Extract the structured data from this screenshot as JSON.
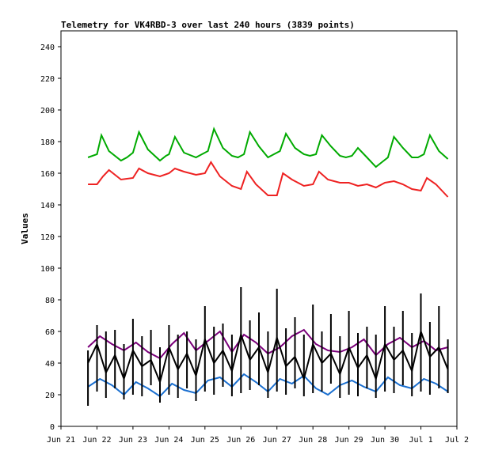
{
  "chart_data": {
    "type": "line",
    "title": "Telemetry for VK4RBD-3 over last 240 hours (3839 points)",
    "xlabel": "",
    "ylabel": "Values",
    "ylim": [
      0,
      250
    ],
    "yticks": [
      0,
      20,
      40,
      60,
      80,
      100,
      120,
      140,
      160,
      180,
      200,
      220,
      240
    ],
    "xlim": [
      "2024-06-21",
      "2024-07-02"
    ],
    "xtick_labels": [
      "Jun 21",
      "Jun 22",
      "Jun 23",
      "Jun 24",
      "Jun 25",
      "Jun 26",
      "Jun 27",
      "Jun 28",
      "Jun 29",
      "Jun 30",
      "Jul 1",
      "Jul 2"
    ],
    "grid": false,
    "series": [
      {
        "color": "#00aa00",
        "x": [
          "2024-06-21 18:00",
          "2024-06-22 00:00",
          "2024-06-22 03:00",
          "2024-06-22 08:00",
          "2024-06-22 16:00",
          "2024-06-22 20:00",
          "2024-06-23 00:00",
          "2024-06-23 04:00",
          "2024-06-23 10:00",
          "2024-06-23 18:00",
          "2024-06-23 22:00",
          "2024-06-24 00:00",
          "2024-06-24 04:00",
          "2024-06-24 10:00",
          "2024-06-24 18:00",
          "2024-06-24 22:00",
          "2024-06-25 02:00",
          "2024-06-25 06:00",
          "2024-06-25 12:00",
          "2024-06-25 18:00",
          "2024-06-25 22:00",
          "2024-06-26 02:00",
          "2024-06-26 06:00",
          "2024-06-26 12:00",
          "2024-06-26 18:00",
          "2024-06-26 22:00",
          "2024-06-27 02:00",
          "2024-06-27 06:00",
          "2024-06-27 12:00",
          "2024-06-27 18:00",
          "2024-06-27 22:00",
          "2024-06-28 02:00",
          "2024-06-28 06:00",
          "2024-06-28 12:00",
          "2024-06-28 18:00",
          "2024-06-28 22:00",
          "2024-06-29 02:00",
          "2024-06-29 06:00",
          "2024-06-29 12:00",
          "2024-06-29 18:00",
          "2024-06-29 22:00",
          "2024-06-30 02:00",
          "2024-06-30 06:00",
          "2024-06-30 12:00",
          "2024-06-30 18:00",
          "2024-06-30 22:00",
          "2024-07-01 02:00",
          "2024-07-01 06:00",
          "2024-07-01 12:00",
          "2024-07-01 18:00"
        ],
        "values": [
          170,
          172,
          184,
          174,
          168,
          170,
          173,
          186,
          175,
          168,
          171,
          172,
          183,
          173,
          170,
          172,
          174,
          188,
          176,
          171,
          170,
          172,
          186,
          177,
          170,
          172,
          174,
          185,
          176,
          172,
          171,
          172,
          184,
          177,
          171,
          170,
          171,
          176,
          170,
          164,
          167,
          170,
          183,
          176,
          170,
          170,
          172,
          184,
          174,
          169
        ]
      },
      {
        "color": "#ee2222",
        "x": [
          "2024-06-21 18:00",
          "2024-06-22 00:00",
          "2024-06-22 04:00",
          "2024-06-22 08:00",
          "2024-06-22 16:00",
          "2024-06-23 00:00",
          "2024-06-23 04:00",
          "2024-06-23 10:00",
          "2024-06-23 18:00",
          "2024-06-24 00:00",
          "2024-06-24 04:00",
          "2024-06-24 10:00",
          "2024-06-24 18:00",
          "2024-06-25 00:00",
          "2024-06-25 04:00",
          "2024-06-25 10:00",
          "2024-06-25 18:00",
          "2024-06-26 00:00",
          "2024-06-26 04:00",
          "2024-06-26 10:00",
          "2024-06-26 18:00",
          "2024-06-27 00:00",
          "2024-06-27 04:00",
          "2024-06-27 10:00",
          "2024-06-27 18:00",
          "2024-06-28 00:00",
          "2024-06-28 04:00",
          "2024-06-28 10:00",
          "2024-06-28 18:00",
          "2024-06-29 00:00",
          "2024-06-29 06:00",
          "2024-06-29 12:00",
          "2024-06-29 18:00",
          "2024-06-30 00:00",
          "2024-06-30 06:00",
          "2024-06-30 12:00",
          "2024-06-30 18:00",
          "2024-07-01 00:00",
          "2024-07-01 04:00",
          "2024-07-01 10:00",
          "2024-07-01 18:00"
        ],
        "values": [
          153,
          153,
          158,
          162,
          156,
          157,
          163,
          160,
          158,
          160,
          163,
          161,
          159,
          160,
          167,
          158,
          152,
          150,
          161,
          153,
          146,
          146,
          160,
          156,
          152,
          153,
          161,
          156,
          154,
          154,
          152,
          153,
          151,
          154,
          155,
          153,
          150,
          149,
          157,
          153,
          145
        ]
      },
      {
        "color": "#7a007a",
        "x": [
          "2024-06-21 18:00",
          "2024-06-22 02:00",
          "2024-06-22 10:00",
          "2024-06-22 18:00",
          "2024-06-23 02:00",
          "2024-06-23 10:00",
          "2024-06-23 18:00",
          "2024-06-24 02:00",
          "2024-06-24 10:00",
          "2024-06-24 18:00",
          "2024-06-25 02:00",
          "2024-06-25 10:00",
          "2024-06-25 18:00",
          "2024-06-26 02:00",
          "2024-06-26 10:00",
          "2024-06-26 18:00",
          "2024-06-27 02:00",
          "2024-06-27 10:00",
          "2024-06-27 18:00",
          "2024-06-28 02:00",
          "2024-06-28 10:00",
          "2024-06-28 18:00",
          "2024-06-29 02:00",
          "2024-06-29 10:00",
          "2024-06-29 18:00",
          "2024-06-30 02:00",
          "2024-06-30 10:00",
          "2024-06-30 18:00",
          "2024-07-01 02:00",
          "2024-07-01 10:00",
          "2024-07-01 18:00"
        ],
        "values": [
          50,
          57,
          52,
          48,
          53,
          47,
          43,
          52,
          59,
          48,
          54,
          60,
          47,
          58,
          53,
          46,
          50,
          57,
          61,
          52,
          48,
          47,
          50,
          55,
          45,
          52,
          56,
          50,
          54,
          48,
          50
        ]
      },
      {
        "color": "#1a6fd0",
        "x": [
          "2024-06-21 18:00",
          "2024-06-22 02:00",
          "2024-06-22 10:00",
          "2024-06-22 18:00",
          "2024-06-23 02:00",
          "2024-06-23 10:00",
          "2024-06-23 18:00",
          "2024-06-24 02:00",
          "2024-06-24 10:00",
          "2024-06-24 18:00",
          "2024-06-25 02:00",
          "2024-06-25 10:00",
          "2024-06-25 18:00",
          "2024-06-26 02:00",
          "2024-06-26 10:00",
          "2024-06-26 18:00",
          "2024-06-27 02:00",
          "2024-06-27 10:00",
          "2024-06-27 18:00",
          "2024-06-28 02:00",
          "2024-06-28 10:00",
          "2024-06-28 18:00",
          "2024-06-29 02:00",
          "2024-06-29 10:00",
          "2024-06-29 18:00",
          "2024-06-30 02:00",
          "2024-06-30 10:00",
          "2024-06-30 18:00",
          "2024-07-01 02:00",
          "2024-07-01 10:00",
          "2024-07-01 18:00"
        ],
        "values": [
          25,
          30,
          26,
          20,
          28,
          24,
          19,
          27,
          23,
          21,
          29,
          31,
          25,
          33,
          28,
          22,
          30,
          27,
          32,
          24,
          20,
          26,
          29,
          25,
          22,
          31,
          26,
          24,
          30,
          27,
          22
        ]
      },
      {
        "color": "#000000",
        "x": [
          "2024-06-21 18:00",
          "2024-06-22 00:00",
          "2024-06-22 06:00",
          "2024-06-22 12:00",
          "2024-06-22 18:00",
          "2024-06-23 00:00",
          "2024-06-23 06:00",
          "2024-06-23 12:00",
          "2024-06-23 18:00",
          "2024-06-24 00:00",
          "2024-06-24 06:00",
          "2024-06-24 12:00",
          "2024-06-24 18:00",
          "2024-06-25 00:00",
          "2024-06-25 06:00",
          "2024-06-25 12:00",
          "2024-06-25 18:00",
          "2024-06-26 00:00",
          "2024-06-26 06:00",
          "2024-06-26 12:00",
          "2024-06-26 18:00",
          "2024-06-27 00:00",
          "2024-06-27 06:00",
          "2024-06-27 12:00",
          "2024-06-27 18:00",
          "2024-06-28 00:00",
          "2024-06-28 06:00",
          "2024-06-28 12:00",
          "2024-06-28 18:00",
          "2024-06-29 00:00",
          "2024-06-29 06:00",
          "2024-06-29 12:00",
          "2024-06-29 18:00",
          "2024-06-30 00:00",
          "2024-06-30 06:00",
          "2024-06-30 12:00",
          "2024-06-30 18:00",
          "2024-07-01 00:00",
          "2024-07-01 06:00",
          "2024-07-01 12:00",
          "2024-07-01 18:00"
        ],
        "values": [
          40,
          52,
          34,
          45,
          30,
          48,
          38,
          42,
          28,
          50,
          36,
          46,
          32,
          55,
          40,
          48,
          35,
          58,
          42,
          50,
          34,
          56,
          38,
          44,
          30,
          52,
          40,
          46,
          33,
          50,
          37,
          45,
          30,
          52,
          42,
          48,
          35,
          60,
          44,
          50,
          36
        ],
        "min_values": [
          13,
          22,
          18,
          24,
          17,
          20,
          19,
          26,
          15,
          20,
          18,
          24,
          16,
          22,
          20,
          25,
          19,
          21,
          23,
          26,
          18,
          22,
          20,
          24,
          19,
          21,
          22,
          27,
          18,
          20,
          19,
          24,
          18,
          22,
          21,
          26,
          19,
          22,
          20,
          24,
          21
        ],
        "max_values": [
          48,
          64,
          60,
          61,
          52,
          68,
          57,
          61,
          50,
          64,
          58,
          60,
          55,
          76,
          63,
          65,
          58,
          88,
          67,
          72,
          60,
          87,
          62,
          69,
          58,
          77,
          60,
          71,
          57,
          73,
          59,
          63,
          58,
          76,
          63,
          73,
          59,
          84,
          66,
          76,
          55
        ]
      }
    ]
  }
}
